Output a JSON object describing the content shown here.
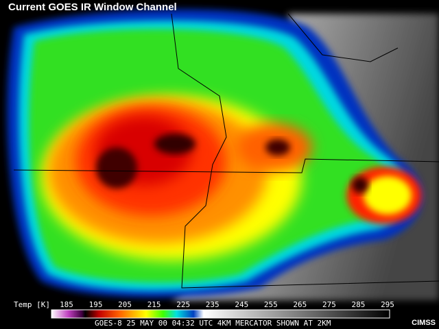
{
  "title": "Current GOES IR Window Channel",
  "colorbar": {
    "label": "Temp [K]",
    "ticks": [
      185,
      195,
      205,
      215,
      225,
      235,
      245,
      255,
      265,
      275,
      285,
      295
    ]
  },
  "caption": "GOES-8 25 MAY 00 04:32 UTC  4KM MERCATOR SHOWN AT 2KM",
  "credit": "CIMSS"
}
